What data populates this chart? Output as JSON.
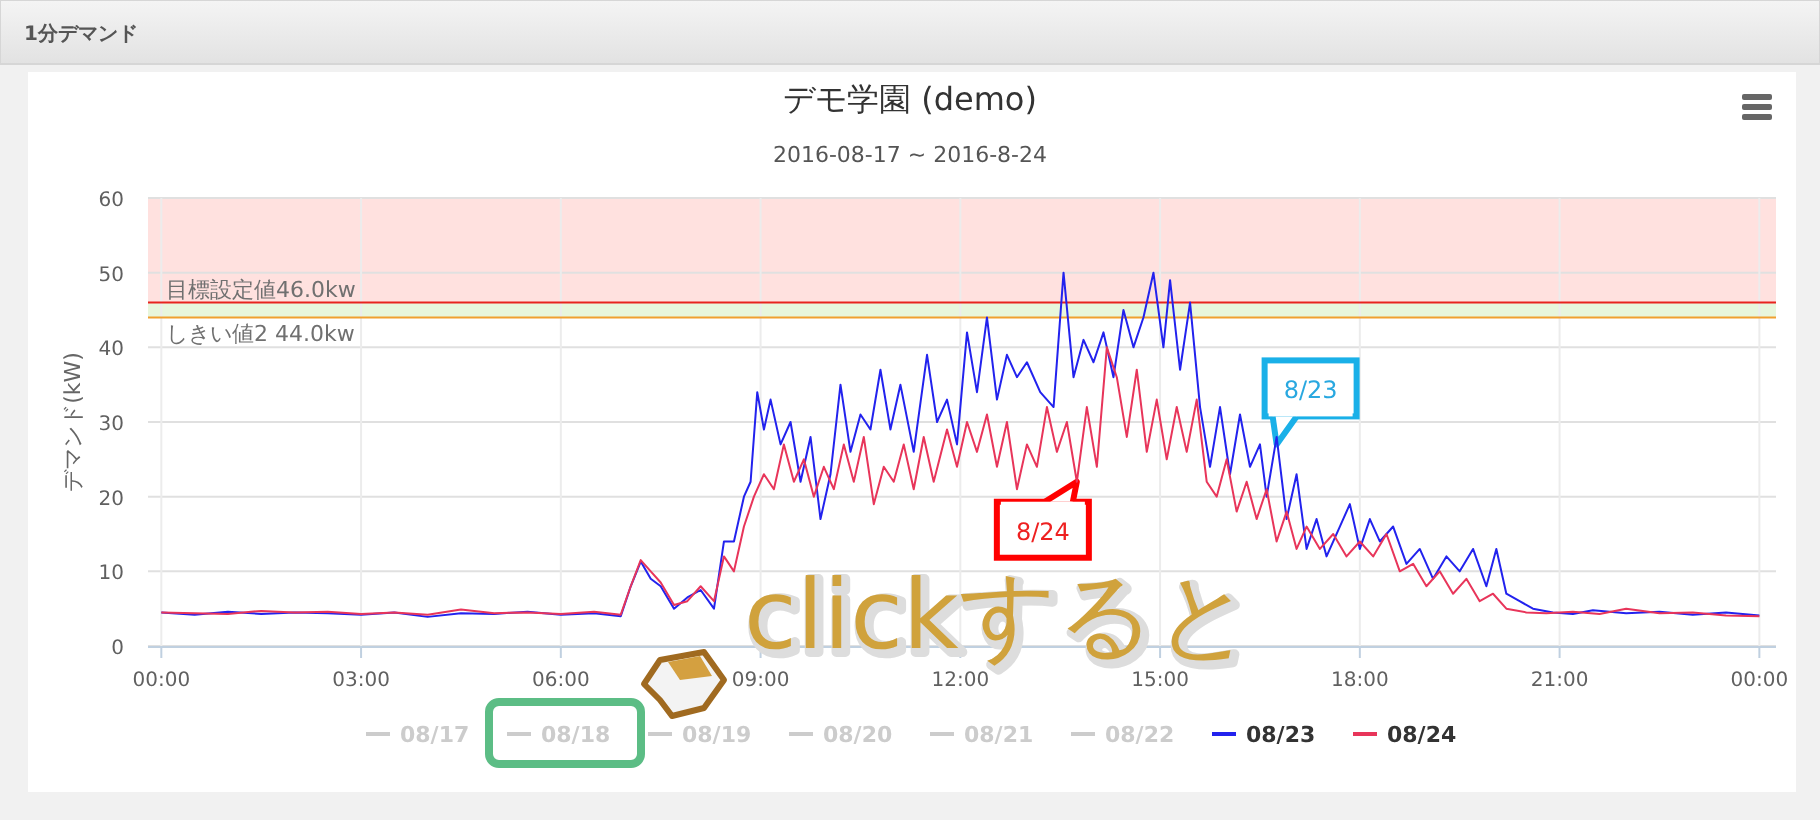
{
  "chart_data": {
    "type": "line",
    "title": "デモ学園 (demo)",
    "subtitle": "2016-08-17 ~ 2016-8-24",
    "ylabel": "デマンド(kW)",
    "xlim": [
      -0.2,
      24.25
    ],
    "xticks": [
      {
        "value": 0,
        "label": "00:00"
      },
      {
        "value": 3,
        "label": "03:00"
      },
      {
        "value": 6,
        "label": "06:00"
      },
      {
        "value": 9,
        "label": "09:00"
      },
      {
        "value": 12,
        "label": "12:00"
      },
      {
        "value": 15,
        "label": "15:00"
      },
      {
        "value": 18,
        "label": "18:00"
      },
      {
        "value": 21,
        "label": "21:00"
      },
      {
        "value": 24,
        "label": "00:00"
      }
    ],
    "ylim": [
      0,
      60
    ],
    "yticks": [
      0,
      10,
      20,
      30,
      40,
      50,
      60
    ],
    "grid": true,
    "legend": "bottom",
    "marker": "none",
    "line_style": "solid",
    "bands": [
      {
        "axis": "y",
        "from": 46,
        "to": 60,
        "label": null,
        "color": "#ffe1df"
      },
      {
        "axis": "y",
        "from": 44,
        "to": 46,
        "label": null,
        "color": "#e8f6dc"
      }
    ],
    "ref_lines": [
      {
        "axis": "y",
        "value": 46,
        "label": "目標設定値46.0kw",
        "color": "#e8231e"
      },
      {
        "axis": "y",
        "value": 44,
        "label": "しきい値2 44.0kw",
        "color": "#f0a030"
      }
    ],
    "annotations": [
      "1分デマンド",
      {
        "text": "8/23",
        "x": 16.75,
        "y": 27
      },
      {
        "text": "8/24",
        "x": 13.75,
        "y": 22
      },
      "clickすると"
    ],
    "series": [
      {
        "name": "08/17",
        "color": "#cccccc"
      },
      {
        "name": "08/18",
        "color": "#cccccc"
      },
      {
        "name": "08/19",
        "color": "#cccccc"
      },
      {
        "name": "08/20",
        "color": "#cccccc"
      },
      {
        "name": "08/21",
        "color": "#cccccc"
      },
      {
        "name": "08/22",
        "color": "#cccccc"
      },
      {
        "name": "08/23",
        "color": "#2222ee",
        "x": [
          0,
          0.5,
          1,
          1.5,
          2,
          2.5,
          3,
          3.5,
          4,
          4.5,
          5,
          5.5,
          6,
          6.5,
          6.9,
          7.05,
          7.2,
          7.35,
          7.5,
          7.7,
          7.9,
          8.1,
          8.3,
          8.45,
          8.6,
          8.75,
          8.85,
          8.95,
          9.05,
          9.15,
          9.3,
          9.45,
          9.6,
          9.75,
          9.9,
          10.05,
          10.2,
          10.35,
          10.5,
          10.65,
          10.8,
          10.95,
          11.1,
          11.3,
          11.5,
          11.65,
          11.8,
          11.95,
          12.1,
          12.25,
          12.4,
          12.55,
          12.7,
          12.85,
          13.0,
          13.2,
          13.4,
          13.55,
          13.7,
          13.85,
          14.0,
          14.15,
          14.3,
          14.45,
          14.6,
          14.75,
          14.9,
          15.05,
          15.15,
          15.3,
          15.45,
          15.6,
          15.75,
          15.9,
          16.05,
          16.2,
          16.35,
          16.5,
          16.6,
          16.75,
          16.9,
          17.05,
          17.2,
          17.35,
          17.5,
          17.7,
          17.85,
          18.0,
          18.15,
          18.3,
          18.5,
          18.7,
          18.9,
          19.1,
          19.3,
          19.5,
          19.7,
          19.9,
          20.05,
          20.2,
          20.4,
          20.6,
          20.9,
          21.2,
          21.5,
          22,
          22.5,
          23,
          23.5,
          24
        ],
        "values": [
          4.5,
          4.2,
          4.6,
          4.3,
          4.5,
          4.4,
          4.2,
          4.5,
          3.9,
          4.4,
          4.3,
          4.6,
          4.2,
          4.4,
          4.0,
          8,
          11.3,
          9,
          8,
          5,
          6.5,
          7.5,
          5,
          14,
          14,
          20,
          22,
          34,
          29,
          33,
          27,
          30,
          22,
          28,
          17,
          23,
          35,
          26,
          31,
          29,
          37,
          29,
          35,
          26,
          39,
          30,
          33,
          27,
          42,
          34,
          44,
          33,
          39,
          36,
          38,
          34,
          32,
          50,
          36,
          41,
          38,
          42,
          36,
          45,
          40,
          44,
          50,
          40,
          49,
          37,
          46,
          32,
          24,
          32,
          23,
          31,
          24,
          27,
          20,
          28,
          17,
          23,
          13,
          17,
          12,
          16,
          19,
          13,
          17,
          14,
          16,
          11,
          13,
          9,
          12,
          10,
          13,
          8,
          13,
          7,
          6,
          5,
          4.5,
          4.3,
          4.8,
          4.4,
          4.6,
          4.2,
          4.5,
          4.1
        ]
      },
      {
        "name": "08/24",
        "color": "#e8355a",
        "x": [
          0,
          0.5,
          1,
          1.5,
          2,
          2.5,
          3,
          3.5,
          4,
          4.5,
          5,
          5.5,
          6,
          6.5,
          6.9,
          7.05,
          7.2,
          7.35,
          7.5,
          7.7,
          7.9,
          8.1,
          8.3,
          8.45,
          8.6,
          8.75,
          8.9,
          9.05,
          9.2,
          9.35,
          9.5,
          9.65,
          9.8,
          9.95,
          10.1,
          10.25,
          10.4,
          10.55,
          10.7,
          10.85,
          11.0,
          11.15,
          11.3,
          11.45,
          11.6,
          11.8,
          11.95,
          12.1,
          12.25,
          12.4,
          12.55,
          12.7,
          12.85,
          13.0,
          13.15,
          13.3,
          13.45,
          13.6,
          13.75,
          13.9,
          14.05,
          14.2,
          14.35,
          14.5,
          14.65,
          14.8,
          14.95,
          15.1,
          15.25,
          15.4,
          15.55,
          15.7,
          15.85,
          16.0,
          16.15,
          16.3,
          16.45,
          16.6,
          16.75,
          16.9,
          17.05,
          17.2,
          17.4,
          17.6,
          17.8,
          18.0,
          18.2,
          18.4,
          18.6,
          18.8,
          19.0,
          19.2,
          19.4,
          19.6,
          19.8,
          20.0,
          20.2,
          20.5,
          20.8,
          21.2,
          21.6,
          22,
          22.5,
          23,
          23.5,
          24
        ],
        "values": [
          4.5,
          4.4,
          4.3,
          4.7,
          4.5,
          4.6,
          4.3,
          4.5,
          4.2,
          4.9,
          4.4,
          4.5,
          4.3,
          4.6,
          4.2,
          8,
          11.5,
          10,
          8.5,
          5.5,
          6,
          8,
          6,
          12,
          10,
          16,
          20,
          23,
          21,
          27,
          22,
          25,
          20,
          24,
          21,
          27,
          22,
          28,
          19,
          24,
          22,
          27,
          21,
          28,
          22,
          29,
          24,
          30,
          26,
          31,
          24,
          30,
          21,
          27,
          24,
          32,
          26,
          30,
          22,
          32,
          24,
          40,
          36,
          28,
          37,
          26,
          33,
          25,
          32,
          26,
          33,
          22,
          20,
          25,
          18,
          22,
          17,
          21,
          14,
          18,
          13,
          16,
          13,
          15,
          12,
          14,
          12,
          15,
          10,
          11,
          8,
          10,
          7,
          9,
          6,
          7,
          5,
          4.5,
          4.4,
          4.6,
          4.3,
          5.0,
          4.4,
          4.5,
          4.1,
          4.0
        ]
      }
    ]
  }
}
